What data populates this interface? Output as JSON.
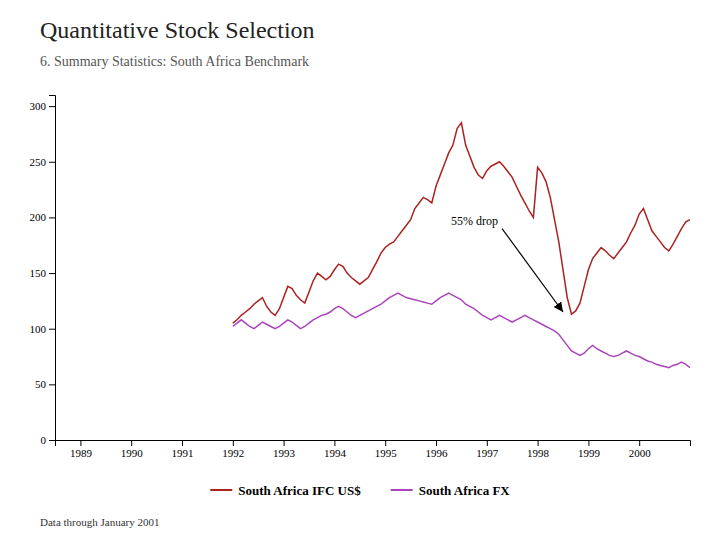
{
  "chart_data": {
    "type": "line",
    "title": "Quantitative Stock Selection",
    "subtitle": "6. Summary Statistics: South Africa Benchmark",
    "footer": "Data through January 2001",
    "x": [
      1992.0,
      1992.083,
      1992.167,
      1992.25,
      1992.333,
      1992.417,
      1992.5,
      1992.583,
      1992.667,
      1992.75,
      1992.833,
      1992.917,
      1993.0,
      1993.083,
      1993.167,
      1993.25,
      1993.333,
      1993.417,
      1993.5,
      1993.583,
      1993.667,
      1993.75,
      1993.833,
      1993.917,
      1994.0,
      1994.083,
      1994.167,
      1994.25,
      1994.333,
      1994.417,
      1994.5,
      1994.583,
      1994.667,
      1994.75,
      1994.833,
      1994.917,
      1995.0,
      1995.083,
      1995.167,
      1995.25,
      1995.333,
      1995.417,
      1995.5,
      1995.583,
      1995.667,
      1995.75,
      1995.833,
      1995.917,
      1996.0,
      1996.083,
      1996.167,
      1996.25,
      1996.333,
      1996.417,
      1996.5,
      1996.583,
      1996.667,
      1996.75,
      1996.833,
      1996.917,
      1997.0,
      1997.083,
      1997.167,
      1997.25,
      1997.333,
      1997.417,
      1997.5,
      1997.583,
      1997.667,
      1997.75,
      1997.833,
      1997.917,
      1998.0,
      1998.083,
      1998.167,
      1998.25,
      1998.333,
      1998.417,
      1998.5,
      1998.583,
      1998.667,
      1998.75,
      1998.833,
      1998.917,
      1999.0,
      1999.083,
      1999.167,
      1999.25,
      1999.333,
      1999.417,
      1999.5,
      1999.583,
      1999.667,
      1999.75,
      1999.833,
      1999.917,
      2000.0,
      2000.083,
      2000.167,
      2000.25,
      2000.333,
      2000.417,
      2000.5,
      2000.583,
      2000.667,
      2000.75,
      2000.833,
      2000.917,
      2001.0
    ],
    "series": [
      {
        "name": "South Africa IFC US$",
        "color": "#aa2222",
        "values": [
          105,
          108,
          112,
          115,
          118,
          122,
          125,
          128,
          120,
          115,
          112,
          118,
          128,
          138,
          136,
          130,
          126,
          123,
          133,
          143,
          150,
          147,
          144,
          147,
          153,
          158,
          156,
          150,
          146,
          143,
          140,
          143,
          146,
          153,
          160,
          168,
          173,
          176,
          178,
          183,
          188,
          193,
          198,
          208,
          213,
          218,
          216,
          213,
          228,
          238,
          248,
          258,
          265,
          280,
          285,
          265,
          255,
          245,
          238,
          235,
          242,
          246,
          248,
          250,
          246,
          241,
          236,
          228,
          220,
          213,
          206,
          200,
          245,
          240,
          232,
          218,
          198,
          178,
          153,
          128,
          113,
          116,
          123,
          138,
          153,
          163,
          168,
          173,
          170,
          166,
          163,
          168,
          173,
          178,
          186,
          193,
          203,
          208,
          198,
          188,
          183,
          178,
          173,
          170,
          176,
          183,
          190,
          196,
          198
        ]
      },
      {
        "name": "South Africa FX",
        "color": "#aa44bb",
        "values": [
          102,
          105,
          108,
          105,
          102,
          100,
          103,
          106,
          104,
          102,
          100,
          102,
          105,
          108,
          106,
          103,
          100,
          102,
          105,
          108,
          110,
          112,
          113,
          115,
          118,
          120,
          118,
          115,
          112,
          110,
          112,
          114,
          116,
          118,
          120,
          122,
          125,
          128,
          130,
          132,
          130,
          128,
          127,
          126,
          125,
          124,
          123,
          122,
          125,
          128,
          130,
          132,
          130,
          128,
          126,
          122,
          120,
          118,
          115,
          112,
          110,
          108,
          110,
          112,
          110,
          108,
          106,
          108,
          110,
          112,
          110,
          108,
          106,
          104,
          102,
          100,
          98,
          95,
          90,
          85,
          80,
          78,
          76,
          78,
          82,
          85,
          82,
          80,
          78,
          76,
          75,
          76,
          78,
          80,
          78,
          76,
          75,
          73,
          71,
          70,
          68,
          67,
          66,
          65,
          67,
          68,
          70,
          68,
          65
        ]
      }
    ],
    "xlim": [
      1988.5,
      2001.0
    ],
    "xticks": [
      1989,
      1990,
      1991,
      1992,
      1993,
      1994,
      1995,
      1996,
      1997,
      1998,
      1999,
      2000
    ],
    "ylim": [
      0,
      310
    ],
    "yticks": [
      0,
      50,
      100,
      150,
      200,
      250,
      300
    ],
    "grid": false,
    "legend": "bottom",
    "annotations": [
      {
        "text": "55% drop",
        "arrow_tail": [
          1997.3,
          190
        ],
        "arrow_head": [
          1998.5,
          115
        ]
      }
    ]
  }
}
